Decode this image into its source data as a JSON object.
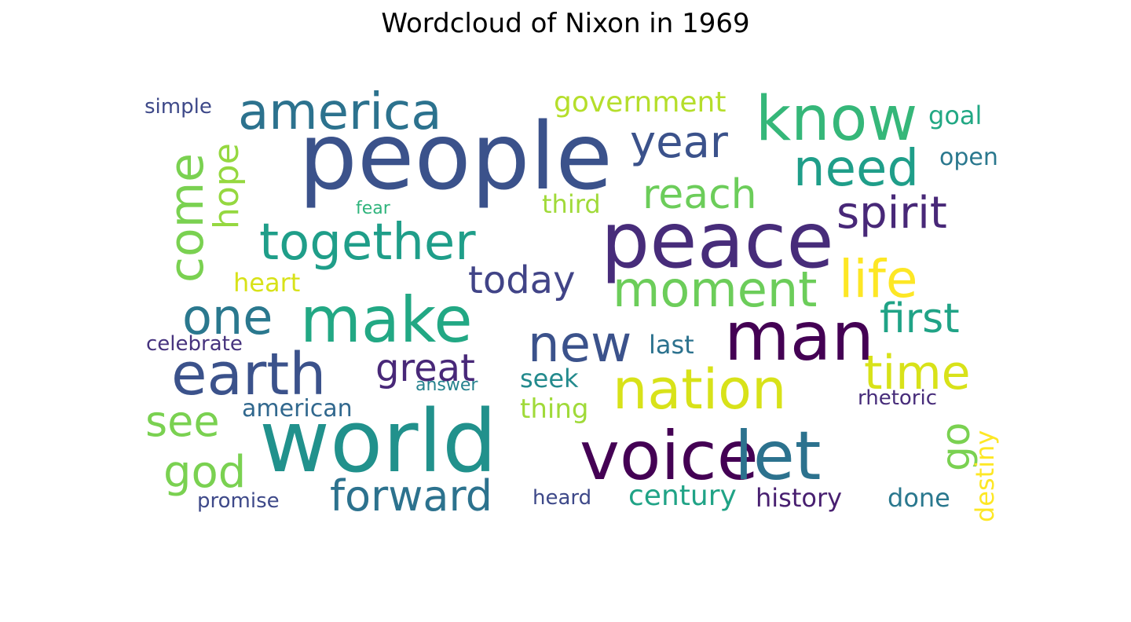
{
  "chart_data": {
    "type": "wordcloud",
    "title": "Wordcloud of Nixon in 1969",
    "colormap": "viridis",
    "words": [
      {
        "text": "people",
        "weight": 1.0,
        "color": "#3b528b"
      },
      {
        "text": "peace",
        "weight": 0.92,
        "color": "#472c7a"
      },
      {
        "text": "world",
        "weight": 0.88,
        "color": "#21918c"
      },
      {
        "text": "voice",
        "weight": 0.74,
        "color": "#440154"
      },
      {
        "text": "let",
        "weight": 0.74,
        "color": "#2c728e"
      },
      {
        "text": "make",
        "weight": 0.74,
        "color": "#22a884"
      },
      {
        "text": "man",
        "weight": 0.74,
        "color": "#440154"
      },
      {
        "text": "know",
        "weight": 0.72,
        "color": "#35b779"
      },
      {
        "text": "earth",
        "weight": 0.68,
        "color": "#3b528b"
      },
      {
        "text": "nation",
        "weight": 0.64,
        "color": "#d8e219"
      },
      {
        "text": "america",
        "weight": 0.6,
        "color": "#2c728e"
      },
      {
        "text": "together",
        "weight": 0.6,
        "color": "#1f9e89"
      },
      {
        "text": "come",
        "weight": 0.58,
        "color": "#7ad151"
      },
      {
        "text": "need",
        "weight": 0.58,
        "color": "#1f9e89"
      },
      {
        "text": "one",
        "weight": 0.58,
        "color": "#2a788e"
      },
      {
        "text": "new",
        "weight": 0.58,
        "color": "#3b528b"
      },
      {
        "text": "moment",
        "weight": 0.56,
        "color": "#6ccd5a"
      },
      {
        "text": "life",
        "weight": 0.56,
        "color": "#fde725"
      },
      {
        "text": "time",
        "weight": 0.52,
        "color": "#d8e219"
      },
      {
        "text": "forward",
        "weight": 0.5,
        "color": "#2c728e"
      },
      {
        "text": "god",
        "weight": 0.5,
        "color": "#7ad151"
      },
      {
        "text": "see",
        "weight": 0.5,
        "color": "#7ad151"
      },
      {
        "text": "year",
        "weight": 0.48,
        "color": "#3b528b"
      },
      {
        "text": "go",
        "weight": 0.48,
        "color": "#7ad151"
      },
      {
        "text": "spirit",
        "weight": 0.46,
        "color": "#482878"
      },
      {
        "text": "reach",
        "weight": 0.46,
        "color": "#6ccd5a"
      },
      {
        "text": "great",
        "weight": 0.44,
        "color": "#482878"
      },
      {
        "text": "hope",
        "weight": 0.44,
        "color": "#95d840"
      },
      {
        "text": "first",
        "weight": 0.44,
        "color": "#20a386"
      },
      {
        "text": "today",
        "weight": 0.42,
        "color": "#414487"
      },
      {
        "text": "century",
        "weight": 0.34,
        "color": "#20a386"
      },
      {
        "text": "government",
        "weight": 0.32,
        "color": "#b5de2b"
      },
      {
        "text": "american",
        "weight": 0.3,
        "color": "#31688e"
      },
      {
        "text": "history",
        "weight": 0.3,
        "color": "#481f70"
      },
      {
        "text": "done",
        "weight": 0.3,
        "color": "#2a788e"
      },
      {
        "text": "destiny",
        "weight": 0.3,
        "color": "#fde725"
      },
      {
        "text": "thing",
        "weight": 0.3,
        "color": "#a0da39"
      },
      {
        "text": "heart",
        "weight": 0.3,
        "color": "#d8e219"
      },
      {
        "text": "last",
        "weight": 0.28,
        "color": "#2c728e"
      },
      {
        "text": "seek",
        "weight": 0.28,
        "color": "#238a8d"
      },
      {
        "text": "third",
        "weight": 0.28,
        "color": "#a0da39"
      },
      {
        "text": "goal",
        "weight": 0.28,
        "color": "#22a884"
      },
      {
        "text": "open",
        "weight": 0.28,
        "color": "#2a788e"
      },
      {
        "text": "heard",
        "weight": 0.24,
        "color": "#3e4989"
      },
      {
        "text": "celebrate",
        "weight": 0.24,
        "color": "#46337e"
      },
      {
        "text": "promise",
        "weight": 0.24,
        "color": "#3e4989"
      },
      {
        "text": "simple",
        "weight": 0.24,
        "color": "#3e4989"
      },
      {
        "text": "rhetoric",
        "weight": 0.24,
        "color": "#472c7a"
      },
      {
        "text": "answer",
        "weight": 0.22,
        "color": "#26828e"
      },
      {
        "text": "fear",
        "weight": 0.22,
        "color": "#2fb47c"
      }
    ]
  }
}
